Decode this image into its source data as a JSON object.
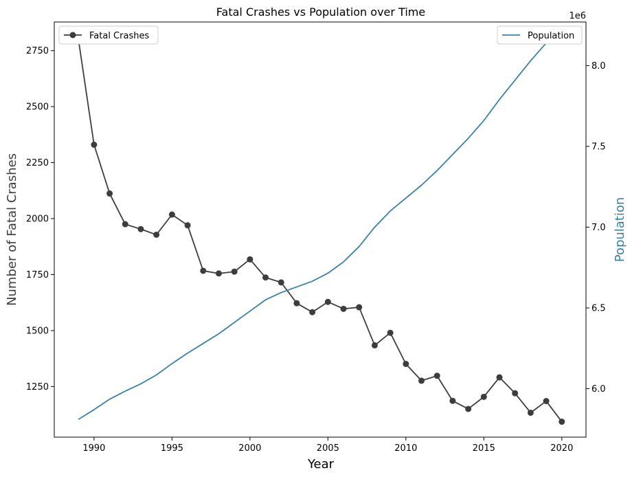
{
  "chart_data": {
    "type": "line",
    "title": "Fatal Crashes vs Population over Time",
    "xlabel": "Year",
    "ylabel_left": "Number of Fatal Crashes",
    "ylabel_right": "Population",
    "right_axis_multiplier": "1e6",
    "x": [
      1989,
      1990,
      1991,
      1992,
      1993,
      1994,
      1995,
      1996,
      1997,
      1998,
      1999,
      2000,
      2001,
      2002,
      2003,
      2004,
      2005,
      2006,
      2007,
      2008,
      2009,
      2010,
      2011,
      2012,
      2013,
      2014,
      2015,
      2016,
      2017,
      2018,
      2019,
      2020
    ],
    "xlim": [
      1987.45,
      2021.55
    ],
    "x_ticks": [
      1990,
      1995,
      2000,
      2005,
      2010,
      2015,
      2020
    ],
    "series": [
      {
        "name": "Fatal Crashes",
        "axis": "left",
        "color": "#3d3d3d",
        "marker": "circle",
        "values": [
          2800,
          2330,
          2112,
          1975,
          1953,
          1928,
          2018,
          1970,
          1767,
          1755,
          1763,
          1818,
          1737,
          1715,
          1622,
          1582,
          1628,
          1597,
          1604,
          1434,
          1490,
          1351,
          1276,
          1298,
          1186,
          1150,
          1204,
          1291,
          1220,
          1133,
          1185,
          1093
        ]
      },
      {
        "name": "Population",
        "axis": "right",
        "color": "#3a80a4",
        "marker": "none",
        "values": [
          5810000,
          5870000,
          5935000,
          5985000,
          6030000,
          6085000,
          6155000,
          6220000,
          6280000,
          6340000,
          6410000,
          6480000,
          6550000,
          6595000,
          6630000,
          6665000,
          6715000,
          6785000,
          6880000,
          7000000,
          7100000,
          7180000,
          7260000,
          7350000,
          7450000,
          7550000,
          7660000,
          7790000,
          7910000,
          8030000,
          8140000,
          8180000
        ]
      }
    ],
    "ylim_left": [
      1024,
      2878
    ],
    "yticks_left": [
      1250,
      1500,
      1750,
      2000,
      2250,
      2500,
      2750
    ],
    "ylim_right": [
      5700000,
      8270000
    ],
    "yticks_right": [
      6000000,
      6500000,
      7000000,
      7500000,
      8000000
    ],
    "yticks_right_labels": [
      "6.0",
      "6.5",
      "7.0",
      "7.5",
      "8.0"
    ],
    "legend_left_placement": "top-left",
    "legend_right_placement": "top-right",
    "grid": false
  }
}
